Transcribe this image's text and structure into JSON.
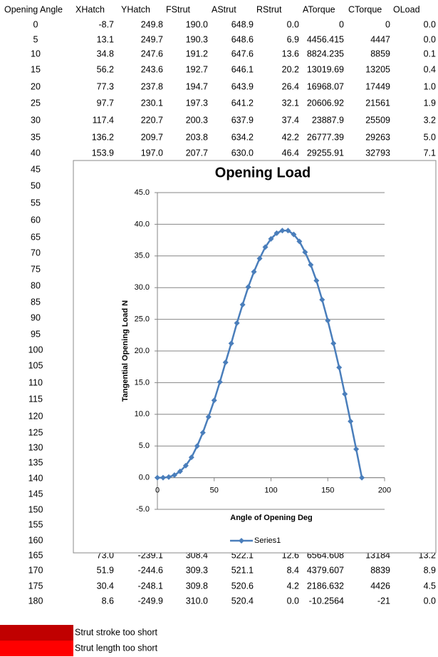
{
  "table": {
    "headers": [
      "Opening Angle",
      "XHatch",
      "YHatch",
      "FStrut",
      "AStrut",
      "RStrut",
      "ATorque",
      "CTorque",
      "OLoad"
    ],
    "rows": [
      [
        "0",
        "-8.7",
        "249.8",
        "190.0",
        "648.9",
        "0.0",
        "0",
        "0",
        "0.0"
      ],
      [
        "5",
        "13.1",
        "249.7",
        "190.3",
        "648.6",
        "6.9",
        "4456.415",
        "4447",
        "0.0"
      ],
      [
        "10",
        "34.8",
        "247.6",
        "191.2",
        "647.6",
        "13.6",
        "8824.235",
        "8859",
        "0.1"
      ],
      [
        "15",
        "56.2",
        "243.6",
        "192.7",
        "646.1",
        "20.2",
        "13019.69",
        "13205",
        "0.4"
      ],
      [
        "20",
        "77.3",
        "237.8",
        "194.7",
        "643.9",
        "26.4",
        "16968.07",
        "17449",
        "1.0"
      ],
      [
        "25",
        "97.7",
        "230.1",
        "197.3",
        "641.2",
        "32.1",
        "20606.92",
        "21561",
        "1.9"
      ],
      [
        "30",
        "117.4",
        "220.7",
        "200.3",
        "637.9",
        "37.4",
        "23887.9",
        "25509",
        "3.2"
      ],
      [
        "35",
        "136.2",
        "209.7",
        "203.8",
        "634.2",
        "42.2",
        "26777.39",
        "29263",
        "5.0"
      ],
      [
        "40",
        "153.9",
        "197.0",
        "207.7",
        "630.0",
        "46.4",
        "29255.91",
        "32793",
        "7.1"
      ],
      [
        "45"
      ],
      [
        "50"
      ],
      [
        "55"
      ],
      [
        "60"
      ],
      [
        "65"
      ],
      [
        "70"
      ],
      [
        "75"
      ],
      [
        "80"
      ],
      [
        "85"
      ],
      [
        "90"
      ],
      [
        "95"
      ],
      [
        "100"
      ],
      [
        "105"
      ],
      [
        "110"
      ],
      [
        "115"
      ],
      [
        "120"
      ],
      [
        "125"
      ],
      [
        "130"
      ],
      [
        "135"
      ],
      [
        "140"
      ],
      [
        "145"
      ],
      [
        "150"
      ],
      [
        "155"
      ],
      [
        "160"
      ],
      [
        "165",
        "73.0",
        "-239.1",
        "308.4",
        "522.1",
        "12.6",
        "6564.608",
        "13184",
        "13.2"
      ],
      [
        "170",
        "51.9",
        "-244.6",
        "309.3",
        "521.1",
        "8.4",
        "4379.607",
        "8839",
        "8.9"
      ],
      [
        "175",
        "30.4",
        "-248.1",
        "309.8",
        "520.6",
        "4.2",
        "2186.632",
        "4426",
        "4.5"
      ],
      [
        "180",
        "8.6",
        "-249.9",
        "310.0",
        "520.4",
        "0.0",
        "-10.2564",
        "-21",
        "0.0"
      ]
    ]
  },
  "notes": [
    {
      "label": "Strut stroke too short",
      "color": "#c00000"
    },
    {
      "label": "Strut length too short",
      "color": "#ff0000"
    }
  ],
  "chart_data": {
    "type": "line",
    "title": "Opening Load",
    "x_label": "Angle of Opening Deg",
    "y_label": "Tangential  Opening Load N",
    "x": [
      0,
      5,
      10,
      15,
      20,
      25,
      30,
      35,
      40,
      45,
      50,
      55,
      60,
      65,
      70,
      75,
      80,
      85,
      90,
      95,
      100,
      105,
      110,
      115,
      120,
      125,
      130,
      135,
      140,
      145,
      150,
      155,
      160,
      165,
      170,
      175,
      180
    ],
    "series": [
      {
        "name": "Series1",
        "color": "#4a7ebb",
        "values": [
          0,
          0.0,
          0.1,
          0.4,
          1.0,
          1.9,
          3.2,
          5.0,
          7.1,
          9.6,
          12.2,
          15.1,
          18.2,
          21.2,
          24.4,
          27.3,
          30.1,
          32.5,
          34.6,
          36.4,
          37.7,
          38.6,
          39.0,
          39.0,
          38.4,
          37.3,
          35.6,
          33.6,
          31.1,
          28.1,
          24.8,
          21.2,
          17.4,
          13.2,
          8.9,
          4.5,
          0.0
        ]
      }
    ],
    "xlim": [
      0,
      200
    ],
    "xticks": [
      0,
      50,
      100,
      150,
      200
    ],
    "ylim": [
      -5,
      45
    ],
    "yticks": [
      {
        "value": -5,
        "label": "-5.0"
      },
      {
        "value": 0,
        "label": "0.0"
      },
      {
        "value": 5,
        "label": "5.0"
      },
      {
        "value": 10,
        "label": "10.0"
      },
      {
        "value": 15,
        "label": "15.0"
      },
      {
        "value": 20,
        "label": "20.0"
      },
      {
        "value": 25,
        "label": "25.0"
      },
      {
        "value": 30,
        "label": "30.0"
      },
      {
        "value": 35,
        "label": "35.0"
      },
      {
        "value": 40,
        "label": "40.0"
      },
      {
        "value": 45,
        "label": "45.0"
      }
    ],
    "grid": true
  }
}
